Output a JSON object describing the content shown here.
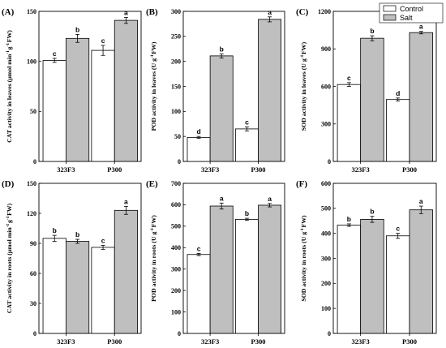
{
  "legend": {
    "items": [
      {
        "label": "Control",
        "color": "#ffffff"
      },
      {
        "label": "Salt",
        "color": "#bfbfbf"
      }
    ],
    "position": "top-right"
  },
  "chart_data": [
    {
      "panel": "(A)",
      "type": "bar",
      "categories": [
        "323F3",
        "P300"
      ],
      "ylabel": "CAT activity in leaves (μmol min⁻¹g⁻¹FW)",
      "ylim": [
        0,
        150
      ],
      "yticks": [
        0,
        50,
        100,
        150
      ],
      "series": [
        {
          "name": "Control",
          "values": [
            101,
            111
          ],
          "errors": [
            2,
            5
          ],
          "letters": [
            "c",
            "c"
          ]
        },
        {
          "name": "Salt",
          "values": [
            123,
            141
          ],
          "errors": [
            4,
            3
          ],
          "letters": [
            "b",
            "a"
          ]
        }
      ]
    },
    {
      "panel": "(B)",
      "type": "bar",
      "categories": [
        "323F3",
        "P300"
      ],
      "ylabel": "POD activity in leaves (U g⁻¹FW)",
      "ylim": [
        0,
        300
      ],
      "yticks": [
        0,
        50,
        100,
        150,
        200,
        250,
        300
      ],
      "series": [
        {
          "name": "Control",
          "values": [
            48,
            65
          ],
          "errors": [
            2,
            4
          ],
          "letters": [
            "d",
            "c"
          ]
        },
        {
          "name": "Salt",
          "values": [
            211,
            284
          ],
          "errors": [
            4,
            5
          ],
          "letters": [
            "b",
            "a"
          ]
        }
      ]
    },
    {
      "panel": "(C)",
      "type": "bar",
      "categories": [
        "323F3",
        "P300"
      ],
      "ylabel": "SOD activity in leaves (U g⁻¹FW)",
      "ylim": [
        0,
        1200
      ],
      "yticks": [
        0,
        300,
        600,
        900,
        1200
      ],
      "series": [
        {
          "name": "Control",
          "values": [
            615,
            495
          ],
          "errors": [
            15,
            12
          ],
          "letters": [
            "c",
            "d"
          ]
        },
        {
          "name": "Salt",
          "values": [
            985,
            1030
          ],
          "errors": [
            20,
            10
          ],
          "letters": [
            "b",
            "a"
          ]
        }
      ]
    },
    {
      "panel": "(D)",
      "type": "bar",
      "categories": [
        "323F3",
        "P300"
      ],
      "ylabel": "CAT activity in roots (μmol min⁻¹g⁻¹FW)",
      "ylim": [
        0,
        150
      ],
      "yticks": [
        0,
        30,
        60,
        90,
        120,
        150
      ],
      "series": [
        {
          "name": "Control",
          "values": [
            95,
            86
          ],
          "errors": [
            3,
            2
          ],
          "letters": [
            "b",
            "c"
          ]
        },
        {
          "name": "Salt",
          "values": [
            92,
            123
          ],
          "errors": [
            2,
            4
          ],
          "letters": [
            "b",
            "a"
          ]
        }
      ]
    },
    {
      "panel": "(E)",
      "type": "bar",
      "categories": [
        "323F3",
        "P300"
      ],
      "ylabel": "POD activity in roots (U g⁻¹FW)",
      "ylim": [
        0,
        700
      ],
      "yticks": [
        0,
        100,
        200,
        300,
        400,
        500,
        600,
        700
      ],
      "series": [
        {
          "name": "Control",
          "values": [
            368,
            532
          ],
          "errors": [
            5,
            5
          ],
          "letters": [
            "c",
            "b"
          ]
        },
        {
          "name": "Salt",
          "values": [
            594,
            598
          ],
          "errors": [
            14,
            8
          ],
          "letters": [
            "a",
            "a"
          ]
        }
      ]
    },
    {
      "panel": "(F)",
      "type": "bar",
      "categories": [
        "323F3",
        "P300"
      ],
      "ylabel": "SOD activity in roots (U g⁻¹FW)",
      "ylim": [
        0,
        600
      ],
      "yticks": [
        0,
        100,
        200,
        300,
        400,
        500,
        600
      ],
      "series": [
        {
          "name": "Control",
          "values": [
            433,
            390
          ],
          "errors": [
            5,
            10
          ],
          "letters": [
            "b",
            "c"
          ]
        },
        {
          "name": "Salt",
          "values": [
            456,
            494
          ],
          "errors": [
            12,
            15
          ],
          "letters": [
            "b",
            "a"
          ]
        }
      ]
    }
  ]
}
